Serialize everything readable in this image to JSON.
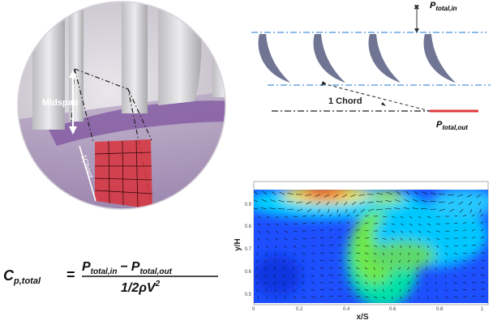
{
  "measurement_view": {
    "midspan_label": "Midspan",
    "chord_label": "1Chord"
  },
  "cascade_schematic": {
    "p_total_in": {
      "base": "P",
      "sub": "total,in"
    },
    "p_total_out": {
      "base": "P",
      "sub": "total,out"
    },
    "chord_label": "1 Chord",
    "blade_count": 4
  },
  "contour_plot": {
    "xlabel": "x/S",
    "ylabel": "y/H",
    "x_ticks": [
      "0",
      "0.2",
      "0.4",
      "0.6",
      "0.8",
      "1"
    ],
    "y_ticks": [
      "0.5",
      "0.6",
      "0.7",
      "0.8",
      "0.9"
    ],
    "xlim": [
      0,
      1.0
    ],
    "ylim": [
      0.47,
      0.97
    ],
    "colormap": "jet"
  },
  "equation": {
    "lhs_base": "C",
    "lhs_sub": "p,total",
    "equals": "=",
    "num_p1": "P",
    "num_sub1": "total,in",
    "minus": "−",
    "num_p2": "P",
    "num_sub2": "total,out",
    "den_prefix": "1/2ρV",
    "den_exp": "2"
  },
  "colors": {
    "blade": "#707593",
    "dashdot_blue": "#4a90d9",
    "probe_red": "#e0393d",
    "grid_red": "#d8333c"
  }
}
